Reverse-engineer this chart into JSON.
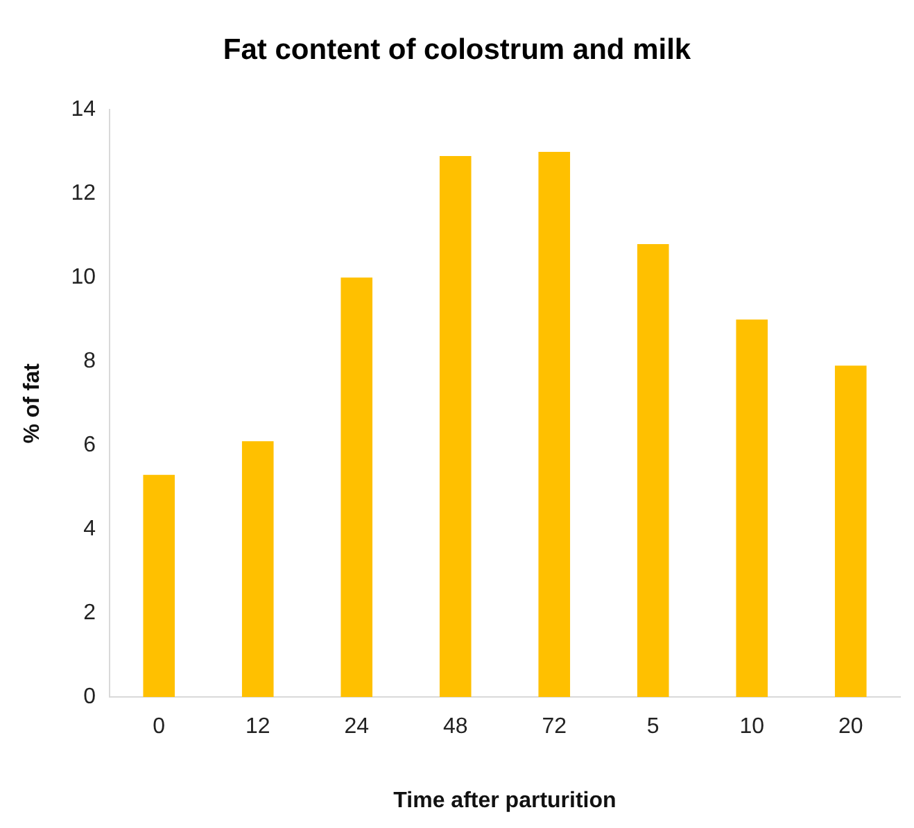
{
  "chart_data": {
    "type": "bar",
    "title": "Fat content of colostrum and milk",
    "xlabel": "Time after parturition",
    "ylabel": "% of fat",
    "categories": [
      "0",
      "12",
      "24",
      "48",
      "72",
      "5",
      "10",
      "20"
    ],
    "values": [
      5.3,
      6.1,
      10.0,
      12.9,
      13.0,
      10.8,
      9.0,
      7.9
    ],
    "color": "#ffc000",
    "ylim": [
      0,
      14
    ],
    "yticks": [
      0,
      2,
      4,
      6,
      8,
      10,
      12,
      14
    ],
    "grid": false,
    "legend": false
  }
}
